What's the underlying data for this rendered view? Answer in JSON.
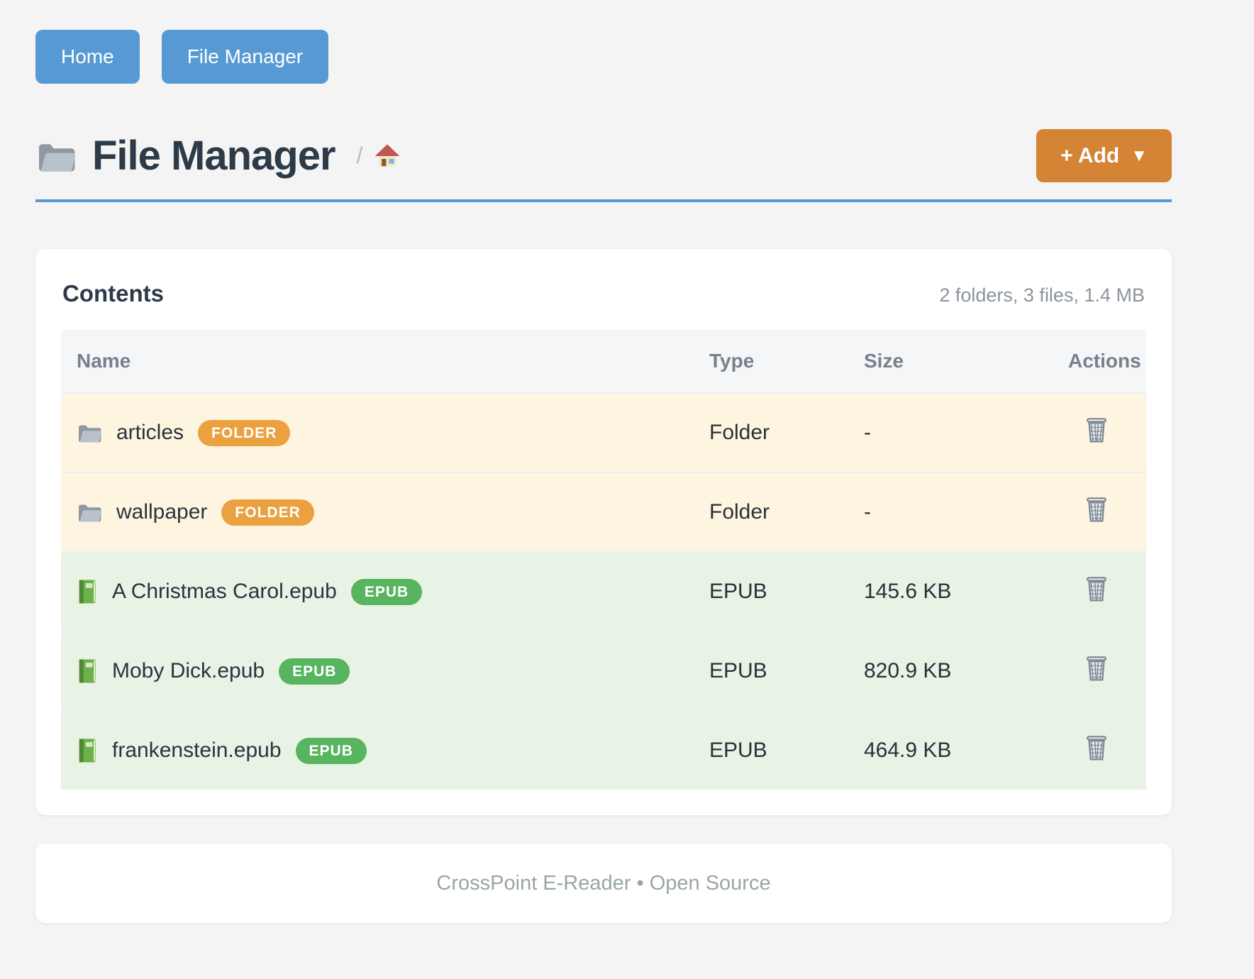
{
  "nav": {
    "items": [
      {
        "label": "Home"
      },
      {
        "label": "File Manager"
      }
    ]
  },
  "header": {
    "title_icon": "folder-icon",
    "title": "File Manager",
    "breadcrumb": {
      "separator": "/",
      "home_icon": "home-icon"
    },
    "add_button": {
      "label": "+ Add",
      "caret": "▼"
    }
  },
  "contents": {
    "title": "Contents",
    "summary": "2 folders, 3 files, 1.4 MB",
    "columns": [
      "Name",
      "Type",
      "Size",
      "Actions"
    ],
    "rows": [
      {
        "icon": "folder",
        "name": "articles",
        "badge": "FOLDER",
        "kind": "folder",
        "type": "Folder",
        "size": "-",
        "action_icon": "trash-icon"
      },
      {
        "icon": "folder",
        "name": "wallpaper",
        "badge": "FOLDER",
        "kind": "folder",
        "type": "Folder",
        "size": "-",
        "action_icon": "trash-icon"
      },
      {
        "icon": "book",
        "name": "A Christmas Carol.epub",
        "badge": "EPUB",
        "kind": "epub",
        "type": "EPUB",
        "size": "145.6 KB",
        "action_icon": "trash-icon"
      },
      {
        "icon": "book",
        "name": "Moby Dick.epub",
        "badge": "EPUB",
        "kind": "epub",
        "type": "EPUB",
        "size": "820.9 KB",
        "action_icon": "trash-icon"
      },
      {
        "icon": "book",
        "name": "frankenstein.epub",
        "badge": "EPUB",
        "kind": "epub",
        "type": "EPUB",
        "size": "464.9 KB",
        "action_icon": "trash-icon"
      }
    ]
  },
  "footer": {
    "text": "CrossPoint E-Reader • Open Source"
  },
  "colors": {
    "page_bg": "#f4f4f5",
    "accent_blue": "#579ad3",
    "accent_orange": "#d48434",
    "badge_folder": "#eba13f",
    "badge_epub": "#57b45f",
    "row_folder_bg": "#fdf5e0",
    "row_epub_bg": "#e8f2e5"
  }
}
